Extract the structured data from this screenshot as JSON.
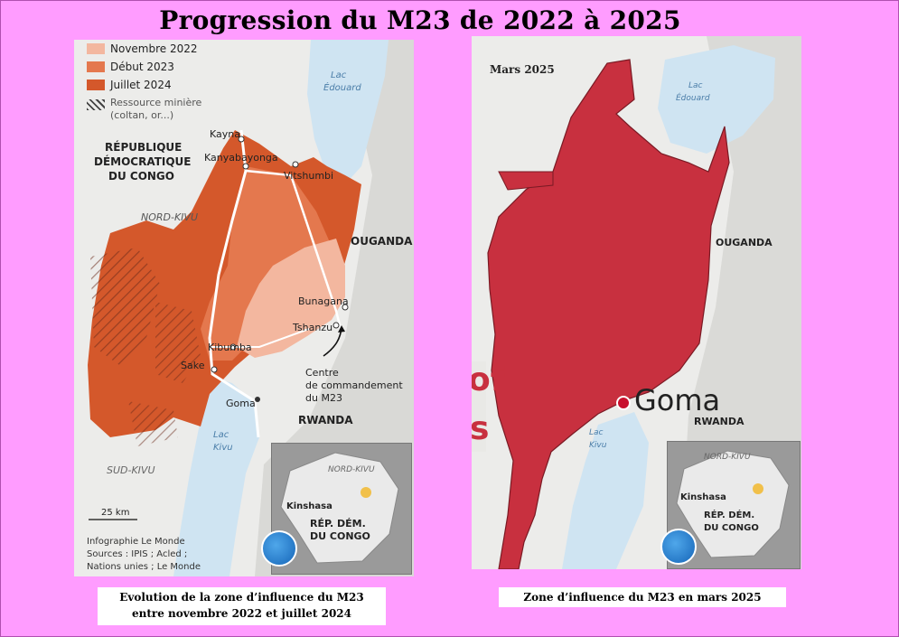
{
  "title": "Progression du M23 de 2022 à 2025",
  "left_map": {
    "legend": [
      {
        "label": "Novembre 2022",
        "color": "#f3b79f"
      },
      {
        "label": "Début 2023",
        "color": "#e4784e"
      },
      {
        "label": "Juillet 2024",
        "color": "#d4582b"
      }
    ],
    "mining_label_1": "Ressource minière",
    "mining_label_2": "(coltan, or...)",
    "country_1": "RÉPUBLIQUE",
    "country_2": "DÉMOCRATIQUE",
    "country_3": "DU CONGO",
    "nord_kivu": "NORD-KIVU",
    "sud_kivu": "SUD-KIVU",
    "lac_edouard_1": "Lac",
    "lac_edouard_2": "Édouard",
    "lac_kivu_1": "Lac",
    "lac_kivu_2": "Kivu",
    "ouganda": "OUGANDA",
    "rwanda": "RWANDA",
    "places": {
      "kayna": "Kayna",
      "kanyabayonga": "Kanyabayonga",
      "vitshumbi": "Vitshumbi",
      "bunagana": "Bunagana",
      "tshanzu": "Tshanzu",
      "kibumba": "Kibumba",
      "sake": "Sake",
      "goma": "Goma"
    },
    "hq_1": "Centre",
    "hq_2": "de commandement",
    "hq_3": "du M23",
    "scale": "25 km",
    "credit_1": "Infographie Le Monde",
    "credit_2": "Sources : IPIS ; Acled ;",
    "credit_3": "Nations unies ; Le Monde",
    "inset_region": "NORD-KIVU",
    "inset_capital": "Kinshasa",
    "inset_country_1": "RÉP. DÉM.",
    "inset_country_2": "DU CONGO"
  },
  "right_map": {
    "date": "Mars 2025",
    "lac_edouard_1": "Lac",
    "lac_edouard_2": "Édouard",
    "ouganda": "OUGANDA",
    "goma": "Goma",
    "rwanda": "RWANDA",
    "lac_kivu_1": "Lac",
    "lac_kivu_2": "Kivu",
    "cut_text_1": "of",
    "cut_text_2": "s",
    "zone_color": "#c8303f",
    "inset_region": "NORD-KIVU",
    "inset_capital": "Kinshasa",
    "inset_country_1": "RÉP. DÉM.",
    "inset_country_2": "DU CONGO"
  },
  "captions": {
    "left_1": "Evolution  de la zone d’influence  du M23",
    "left_2": "entre novembre  2022 et juillet 2024",
    "right": "Zone d’influence  du M23   en mars  2025"
  }
}
